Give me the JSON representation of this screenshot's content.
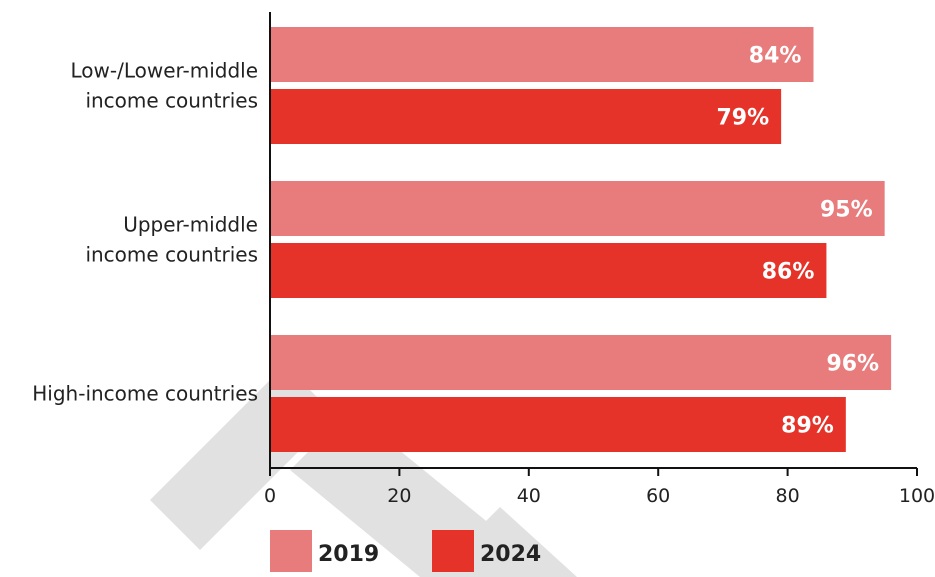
{
  "chart_data": {
    "type": "bar",
    "orientation": "horizontal",
    "categories": [
      "Low-/Lower-middle income countries",
      "Upper-middle income countries",
      "High-income countries"
    ],
    "category_lines": [
      [
        "Low-/Lower-middle",
        "income countries"
      ],
      [
        "Upper-middle",
        "income countries"
      ],
      [
        "High-income countries"
      ]
    ],
    "series": [
      {
        "name": "2019",
        "values": [
          84,
          95,
          96
        ],
        "labels": [
          "84%",
          "95%",
          "96%"
        ]
      },
      {
        "name": "2024",
        "values": [
          79,
          86,
          89
        ],
        "labels": [
          "79%",
          "86%",
          "89%"
        ]
      }
    ],
    "xlim": [
      0,
      100
    ],
    "xticks": [
      "0",
      "20",
      "40",
      "60",
      "80",
      "100"
    ],
    "grid": false,
    "legend_position": "bottom-left"
  },
  "colors": {
    "2019": "#e87b7b",
    "2024": "#e5332a",
    "axis": "#111111",
    "watermark": "#cccccc"
  }
}
